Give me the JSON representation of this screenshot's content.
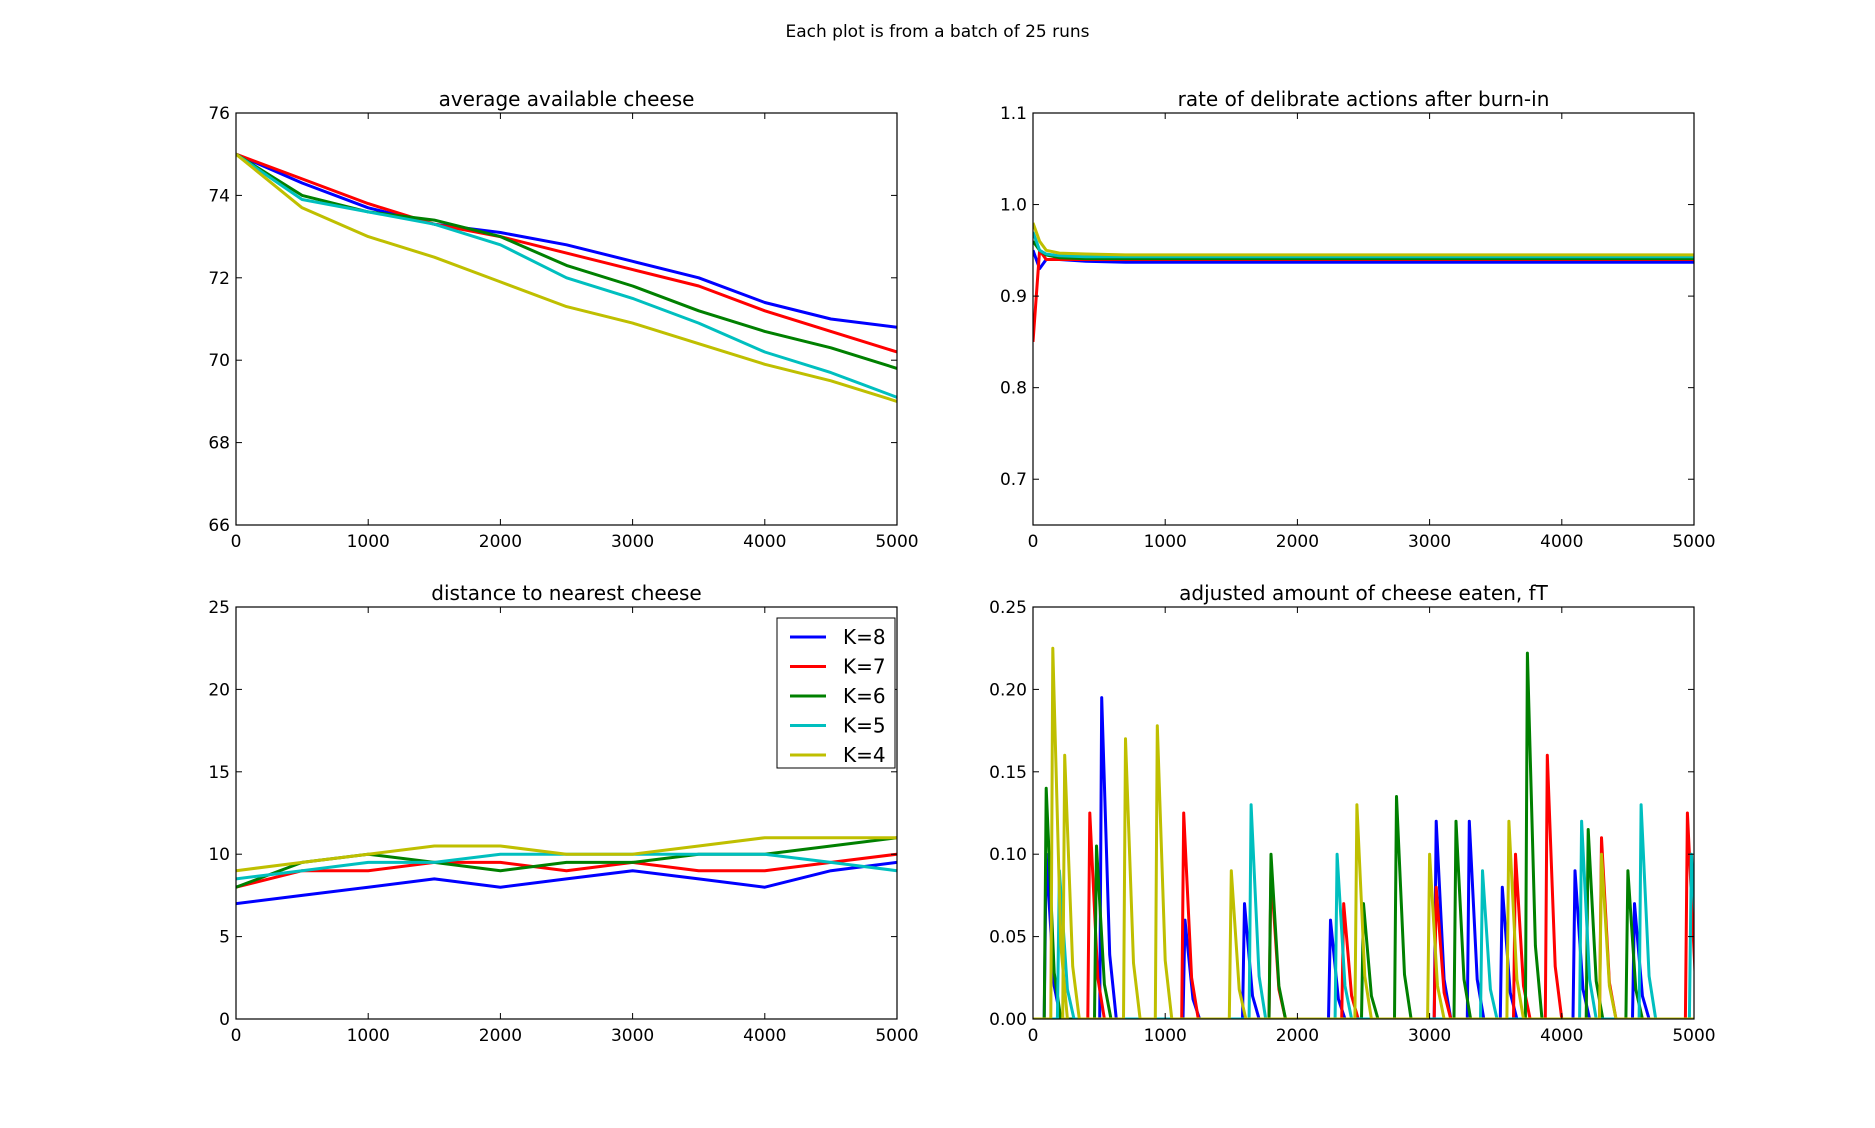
{
  "suptitle": "Each plot is from a batch of 25 runs",
  "colors": {
    "K=8": "#0000ff",
    "K=7": "#ff0000",
    "K=6": "#008000",
    "K=5": "#00bfbf",
    "K=4": "#bfbf00"
  },
  "legend": {
    "placement": "top-right",
    "entries": [
      "K=8",
      "K=7",
      "K=6",
      "K=5",
      "K=4"
    ]
  },
  "chart_data": [
    {
      "type": "line",
      "title": "average available cheese",
      "xlim": [
        0,
        5000
      ],
      "ylim": [
        66,
        76
      ],
      "xticks": [
        0,
        1000,
        2000,
        3000,
        4000,
        5000
      ],
      "yticks": [
        66,
        68,
        70,
        72,
        74,
        76
      ],
      "x": [
        0,
        500,
        1000,
        1500,
        2000,
        2500,
        3000,
        3500,
        4000,
        4500,
        5000
      ],
      "series": [
        {
          "name": "K=8",
          "values": [
            75.0,
            74.3,
            73.7,
            73.3,
            73.1,
            72.8,
            72.4,
            72.0,
            71.4,
            71.0,
            70.8
          ]
        },
        {
          "name": "K=7",
          "values": [
            75.0,
            74.4,
            73.8,
            73.3,
            73.0,
            72.6,
            72.2,
            71.8,
            71.2,
            70.7,
            70.2
          ]
        },
        {
          "name": "K=6",
          "values": [
            75.0,
            74.0,
            73.6,
            73.4,
            73.0,
            72.3,
            71.8,
            71.2,
            70.7,
            70.3,
            69.8
          ]
        },
        {
          "name": "K=5",
          "values": [
            75.0,
            73.9,
            73.6,
            73.3,
            72.8,
            72.0,
            71.5,
            70.9,
            70.2,
            69.7,
            69.1
          ]
        },
        {
          "name": "K=4",
          "values": [
            75.0,
            73.7,
            73.0,
            72.5,
            71.9,
            71.3,
            70.9,
            70.4,
            69.9,
            69.5,
            69.0
          ]
        }
      ]
    },
    {
      "type": "line",
      "title": "rate of delibrate actions after burn-in",
      "xlim": [
        0,
        5000
      ],
      "ylim": [
        0.65,
        1.1
      ],
      "xticks": [
        0,
        1000,
        2000,
        3000,
        4000,
        5000
      ],
      "yticks": [
        0.7,
        0.8,
        0.9,
        1.0,
        1.1
      ],
      "x": [
        0,
        50,
        100,
        200,
        400,
        700,
        1000,
        2000,
        3000,
        4000,
        5000
      ],
      "series": [
        {
          "name": "K=8",
          "values": [
            0.95,
            0.93,
            0.94,
            0.94,
            0.938,
            0.937,
            0.937,
            0.937,
            0.937,
            0.937,
            0.937
          ]
        },
        {
          "name": "K=7",
          "values": [
            0.85,
            0.95,
            0.94,
            0.94,
            0.94,
            0.94,
            0.94,
            0.94,
            0.94,
            0.94,
            0.94
          ]
        },
        {
          "name": "K=6",
          "values": [
            0.96,
            0.95,
            0.945,
            0.942,
            0.941,
            0.941,
            0.941,
            0.941,
            0.941,
            0.941,
            0.941
          ]
        },
        {
          "name": "K=5",
          "values": [
            0.97,
            0.95,
            0.946,
            0.944,
            0.943,
            0.943,
            0.943,
            0.943,
            0.943,
            0.943,
            0.943
          ]
        },
        {
          "name": "K=4",
          "values": [
            0.98,
            0.96,
            0.95,
            0.947,
            0.946,
            0.945,
            0.945,
            0.945,
            0.945,
            0.945,
            0.945
          ]
        }
      ]
    },
    {
      "type": "line",
      "title": "distance to nearest cheese",
      "xlim": [
        0,
        5000
      ],
      "ylim": [
        0,
        25
      ],
      "xticks": [
        0,
        1000,
        2000,
        3000,
        4000,
        5000
      ],
      "yticks": [
        0,
        5,
        10,
        15,
        20,
        25
      ],
      "x": [
        0,
        500,
        1000,
        1500,
        2000,
        2500,
        3000,
        3500,
        4000,
        4500,
        5000
      ],
      "series": [
        {
          "name": "K=8",
          "values": [
            7,
            7.5,
            8,
            8.5,
            8,
            8.5,
            9,
            8.5,
            8,
            9,
            9.5
          ]
        },
        {
          "name": "K=7",
          "values": [
            8,
            9,
            9,
            9.5,
            9.5,
            9,
            9.5,
            9,
            9,
            9.5,
            10
          ]
        },
        {
          "name": "K=6",
          "values": [
            8,
            9.5,
            10,
            9.5,
            9,
            9.5,
            9.5,
            10,
            10,
            10.5,
            11
          ]
        },
        {
          "name": "K=5",
          "values": [
            8.5,
            9,
            9.5,
            9.5,
            10,
            10,
            10,
            10,
            10,
            9.5,
            9
          ]
        },
        {
          "name": "K=4",
          "values": [
            9,
            9.5,
            10,
            10.5,
            10.5,
            10,
            10,
            10.5,
            11,
            11,
            11
          ]
        }
      ]
    },
    {
      "type": "line",
      "title": "adjusted amount of cheese eaten, fT",
      "xlim": [
        0,
        5000
      ],
      "ylim": [
        0,
        0.25
      ],
      "xticks": [
        0,
        1000,
        2000,
        3000,
        4000,
        5000
      ],
      "yticks": [
        "0.00",
        "0.05",
        "0.10",
        "0.15",
        "0.20",
        "0.25"
      ],
      "series": [
        {
          "name": "K=8",
          "peaks": [
            [
              100,
              0.1
            ],
            [
              520,
              0.195
            ],
            [
              1150,
              0.06
            ],
            [
              1600,
              0.07
            ],
            [
              2250,
              0.06
            ],
            [
              3050,
              0.12
            ],
            [
              3300,
              0.12
            ],
            [
              3550,
              0.08
            ],
            [
              4100,
              0.09
            ],
            [
              4550,
              0.07
            ]
          ]
        },
        {
          "name": "K=7",
          "peaks": [
            [
              430,
              0.125
            ],
            [
              1140,
              0.125
            ],
            [
              1800,
              0.09
            ],
            [
              2350,
              0.07
            ],
            [
              3050,
              0.08
            ],
            [
              3650,
              0.1
            ],
            [
              3890,
              0.16
            ],
            [
              4300,
              0.11
            ],
            [
              4950,
              0.125
            ]
          ]
        },
        {
          "name": "K=6",
          "peaks": [
            [
              100,
              0.14
            ],
            [
              480,
              0.105
            ],
            [
              1800,
              0.1
            ],
            [
              2500,
              0.07
            ],
            [
              2750,
              0.135
            ],
            [
              3200,
              0.12
            ],
            [
              3740,
              0.222
            ],
            [
              4200,
              0.115
            ],
            [
              4500,
              0.09
            ]
          ]
        },
        {
          "name": "K=5",
          "peaks": [
            [
              200,
              0.09
            ],
            [
              1650,
              0.13
            ],
            [
              2300,
              0.1
            ],
            [
              3400,
              0.09
            ],
            [
              4150,
              0.12
            ],
            [
              4600,
              0.13
            ],
            [
              4980,
              0.1
            ]
          ]
        },
        {
          "name": "K=4",
          "peaks": [
            [
              150,
              0.225
            ],
            [
              240,
              0.16
            ],
            [
              700,
              0.17
            ],
            [
              940,
              0.178
            ],
            [
              1500,
              0.09
            ],
            [
              2450,
              0.13
            ],
            [
              3000,
              0.1
            ],
            [
              3600,
              0.12
            ],
            [
              4300,
              0.1
            ]
          ]
        }
      ]
    }
  ]
}
